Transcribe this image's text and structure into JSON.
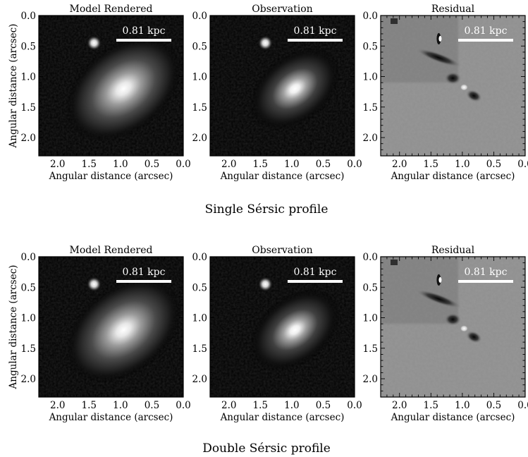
{
  "rows": [
    {
      "caption": "Single Sérsic profile",
      "panels": [
        {
          "title": "Model Rendered",
          "kind": "model",
          "scale_label": "0.81 kpc"
        },
        {
          "title": "Observation",
          "kind": "observation",
          "scale_label": "0.81 kpc"
        },
        {
          "title": "Residual",
          "kind": "residual",
          "scale_label": "0.81 kpc"
        }
      ]
    },
    {
      "caption": "Double Sérsic profile",
      "panels": [
        {
          "title": "Model Rendered",
          "kind": "model",
          "scale_label": "0.81 kpc"
        },
        {
          "title": "Observation",
          "kind": "observation",
          "scale_label": "0.81 kpc"
        },
        {
          "title": "Residual",
          "kind": "residual",
          "scale_label": "0.81 kpc"
        }
      ]
    }
  ],
  "axes": {
    "xlabel": "Angular distance (arcsec)",
    "ylabel": "Angular distance (arcsec)",
    "x_ticks": [
      "2.0",
      "1.5",
      "1.0",
      "0.5",
      "0.0"
    ],
    "y_ticks": [
      "0.0",
      "0.5",
      "1.0",
      "1.5",
      "2.0"
    ],
    "x_range": [
      2.3,
      0.0
    ],
    "y_range": [
      0.0,
      2.3
    ]
  },
  "sources": {
    "main_galaxy": {
      "x": 0.95,
      "y": 1.2
    },
    "companion": {
      "x": 1.42,
      "y": 0.45
    }
  },
  "colors": {
    "background": "#ffffff",
    "text": "#000000",
    "scalebar": "#ffffff"
  }
}
